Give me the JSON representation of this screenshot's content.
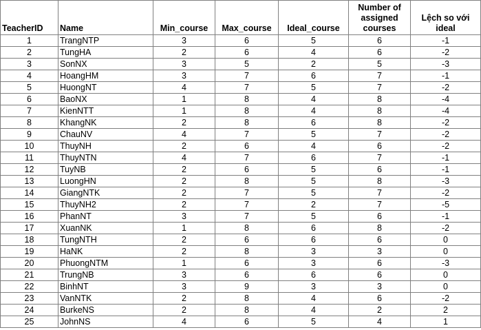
{
  "headers": {
    "teacher_id": "TeacherID",
    "name": "Name",
    "min_course": "Min_course",
    "max_course": "Max_course",
    "ideal_course": "Ideal_course",
    "assigned": "Number of assigned courses",
    "deviation": "Lệch so với ideal"
  },
  "rows": [
    {
      "id": "1",
      "name": "TrangNTP",
      "min": "3",
      "max": "6",
      "ideal": "5",
      "assigned": "6",
      "dev": "-1"
    },
    {
      "id": "2",
      "name": "TungHA",
      "min": "2",
      "max": "6",
      "ideal": "4",
      "assigned": "6",
      "dev": "-2"
    },
    {
      "id": "3",
      "name": "SonNX",
      "min": "3",
      "max": "5",
      "ideal": "2",
      "assigned": "5",
      "dev": "-3"
    },
    {
      "id": "4",
      "name": "HoangHM",
      "min": "3",
      "max": "7",
      "ideal": "6",
      "assigned": "7",
      "dev": "-1"
    },
    {
      "id": "5",
      "name": "HuongNT",
      "min": "4",
      "max": "7",
      "ideal": "5",
      "assigned": "7",
      "dev": "-2"
    },
    {
      "id": "6",
      "name": "BaoNX",
      "min": "1",
      "max": "8",
      "ideal": "4",
      "assigned": "8",
      "dev": "-4"
    },
    {
      "id": "7",
      "name": "KienNTT",
      "min": "1",
      "max": "8",
      "ideal": "4",
      "assigned": "8",
      "dev": "-4"
    },
    {
      "id": "8",
      "name": "KhangNK",
      "min": "2",
      "max": "8",
      "ideal": "6",
      "assigned": "8",
      "dev": "-2"
    },
    {
      "id": "9",
      "name": "ChauNV",
      "min": "4",
      "max": "7",
      "ideal": "5",
      "assigned": "7",
      "dev": "-2"
    },
    {
      "id": "10",
      "name": "ThuyNH",
      "min": "2",
      "max": "6",
      "ideal": "4",
      "assigned": "6",
      "dev": "-2"
    },
    {
      "id": "11",
      "name": "ThuyNTN",
      "min": "4",
      "max": "7",
      "ideal": "6",
      "assigned": "7",
      "dev": "-1"
    },
    {
      "id": "12",
      "name": "TuyNB",
      "min": "2",
      "max": "6",
      "ideal": "5",
      "assigned": "6",
      "dev": "-1"
    },
    {
      "id": "13",
      "name": "LuongHN",
      "min": "2",
      "max": "8",
      "ideal": "5",
      "assigned": "8",
      "dev": "-3"
    },
    {
      "id": "14",
      "name": "GiangNTK",
      "min": "2",
      "max": "7",
      "ideal": "5",
      "assigned": "7",
      "dev": "-2"
    },
    {
      "id": "15",
      "name": "ThuyNH2",
      "min": "2",
      "max": "7",
      "ideal": "2",
      "assigned": "7",
      "dev": "-5"
    },
    {
      "id": "16",
      "name": "PhanNT",
      "min": "3",
      "max": "7",
      "ideal": "5",
      "assigned": "6",
      "dev": "-1"
    },
    {
      "id": "17",
      "name": "XuanNK",
      "min": "1",
      "max": "8",
      "ideal": "6",
      "assigned": "8",
      "dev": "-2"
    },
    {
      "id": "18",
      "name": "TungNTH",
      "min": "2",
      "max": "6",
      "ideal": "6",
      "assigned": "6",
      "dev": "0"
    },
    {
      "id": "19",
      "name": "HaNK",
      "min": "2",
      "max": "8",
      "ideal": "3",
      "assigned": "3",
      "dev": "0"
    },
    {
      "id": "20",
      "name": "PhuongNTM",
      "min": "1",
      "max": "6",
      "ideal": "3",
      "assigned": "6",
      "dev": "-3"
    },
    {
      "id": "21",
      "name": "TrungNB",
      "min": "3",
      "max": "6",
      "ideal": "6",
      "assigned": "6",
      "dev": "0"
    },
    {
      "id": "22",
      "name": "BinhNT",
      "min": "3",
      "max": "9",
      "ideal": "3",
      "assigned": "3",
      "dev": "0"
    },
    {
      "id": "23",
      "name": "VanNTK",
      "min": "2",
      "max": "8",
      "ideal": "4",
      "assigned": "6",
      "dev": "-2"
    },
    {
      "id": "24",
      "name": "BurkeNS",
      "min": "2",
      "max": "8",
      "ideal": "4",
      "assigned": "2",
      "dev": "2"
    },
    {
      "id": "25",
      "name": "JohnNS",
      "min": "4",
      "max": "6",
      "ideal": "5",
      "assigned": "4",
      "dev": "1"
    }
  ]
}
